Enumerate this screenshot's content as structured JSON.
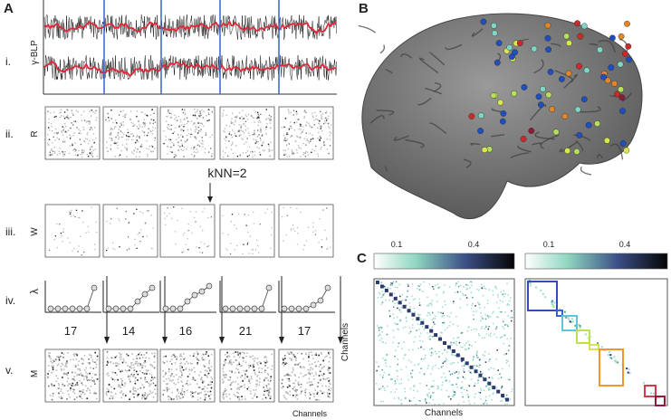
{
  "panels": {
    "A": {
      "label": "A",
      "rows": [
        {
          "label": "i.",
          "axis": "γ-BLP"
        },
        {
          "label": "ii.",
          "axis": "R"
        },
        {
          "label": "iii.",
          "axis": "W"
        },
        {
          "label": "iv.",
          "axis": "λ"
        },
        {
          "label": "v.",
          "axis": "M"
        }
      ],
      "knn": "kNN=2",
      "lambda_values": [
        17,
        14,
        16,
        21,
        17
      ],
      "x_label": "Channels"
    },
    "B": {
      "label": "B"
    },
    "C": {
      "label": "C",
      "colorbars": [
        {
          "ticks": [
            0.1,
            0.4
          ]
        },
        {
          "ticks": [
            0.1,
            0.4
          ]
        }
      ],
      "x_label": "Channels",
      "y_label": "Channels"
    }
  }
}
